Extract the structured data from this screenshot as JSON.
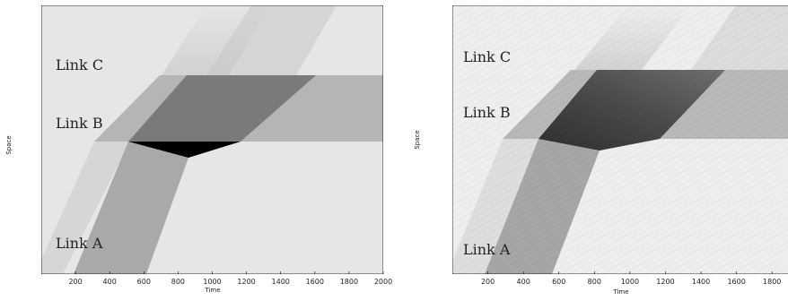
{
  "chart_data": [
    {
      "type": "heatmap",
      "xlabel": "Time",
      "ylabel": "Space",
      "xlim": [
        0,
        2000
      ],
      "x_ticks": [
        200,
        400,
        600,
        800,
        1000,
        1200,
        1400,
        1600,
        1800,
        2000
      ],
      "grid": false,
      "region_labels": [
        "Link A",
        "Link B",
        "Link C"
      ],
      "colors": {
        "background": "#e6e6e6",
        "frame": "#000000",
        "link_c_region": "#e0e0e0",
        "queue_band": "#b5b5b5",
        "congestion": "#7a7a7a",
        "spillback": "#000000",
        "link_a_platoon": "#a9a9a9",
        "link_a_light": "#d4d4d4"
      }
    },
    {
      "type": "heatmap",
      "xlabel": "Time",
      "ylabel": "Space",
      "xlim": [
        0,
        1900
      ],
      "x_ticks": [
        200,
        400,
        600,
        800,
        1000,
        1200,
        1400,
        1600,
        1800
      ],
      "grid": false,
      "region_labels": [
        "Link A",
        "Link B",
        "Link C"
      ],
      "colors": {
        "background": "#eeeeee",
        "frame": "#000000",
        "queue_band": "#b8b8b8",
        "congestion": "#5a5a5a",
        "link_a_platoon": "#a6a6a6",
        "link_a_light": "#dcdcdc"
      }
    }
  ]
}
